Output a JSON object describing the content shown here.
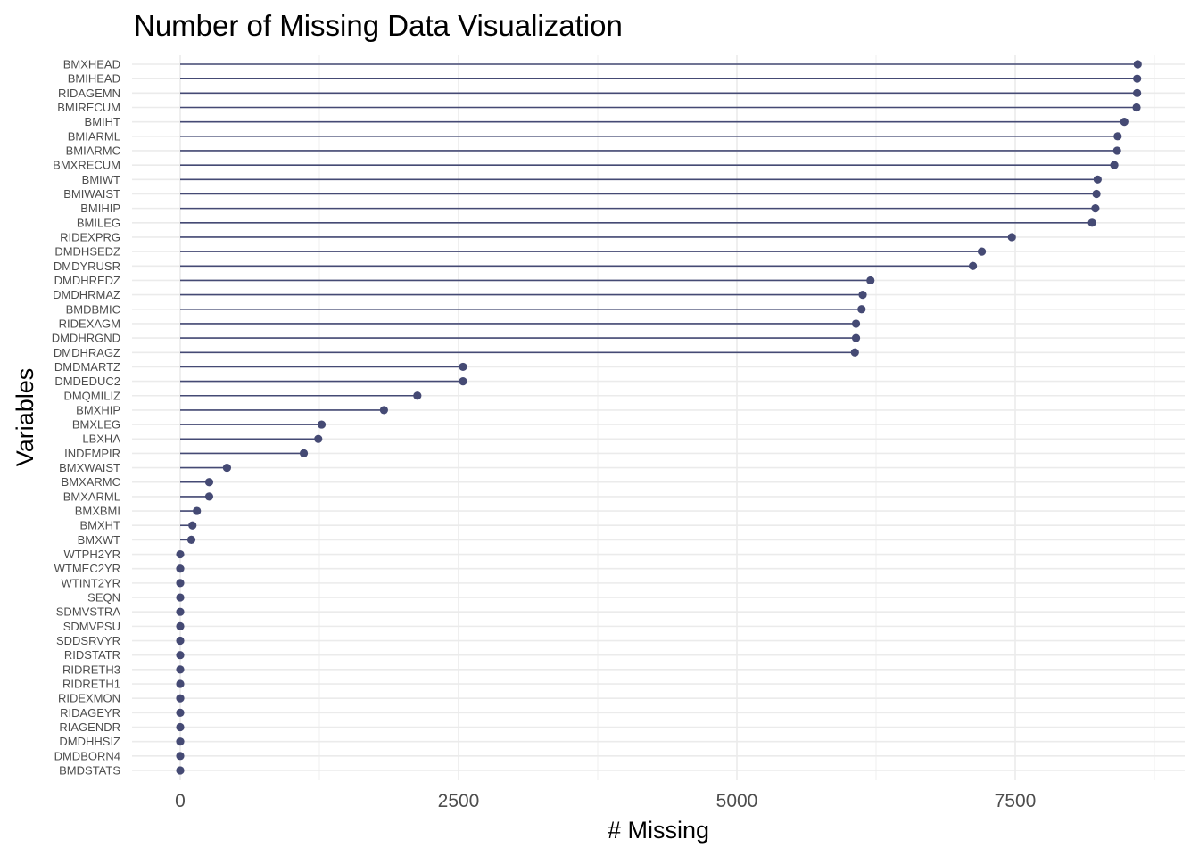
{
  "chart_data": {
    "type": "lollipop",
    "title": "Number of Missing Data Visualization",
    "xlabel": "# Missing",
    "ylabel": "Variables",
    "xlim": [
      -420,
      9130
    ],
    "xticks": [
      0,
      2500,
      5000,
      7500
    ],
    "xtick_labels": [
      "0",
      "2500",
      "5000",
      "7500"
    ],
    "grid": true,
    "color": "#454a74",
    "categories": [
      "BMXHEAD",
      "BMIHEAD",
      "RIDAGEMN",
      "BMIRECUM",
      "BMIHT",
      "BMIARML",
      "BMIARMC",
      "BMXRECUM",
      "BMIWT",
      "BMIWAIST",
      "BMIHIP",
      "BMILEG",
      "RIDEXPRG",
      "DMDHSEDZ",
      "DMDYRUSR",
      "DMDHREDZ",
      "DMDHRMAZ",
      "BMDBMIC",
      "RIDEXAGM",
      "DMDHRGND",
      "DMDHRAGZ",
      "DMDMARTZ",
      "DMDEDUC2",
      "DMQMILIZ",
      "BMXHIP",
      "BMXLEG",
      "LBXHA",
      "INDFMPIR",
      "BMXWAIST",
      "BMXARMC",
      "BMXARML",
      "BMXBMI",
      "BMXHT",
      "BMXWT",
      "WTPH2YR",
      "WTMEC2YR",
      "WTINT2YR",
      "SEQN",
      "SDMVSTRA",
      "SDMVPSU",
      "SDDSRVYR",
      "RIDSTATR",
      "RIDRETH3",
      "RIDRETH1",
      "RIDEXMON",
      "RIDAGEYR",
      "RIAGENDR",
      "DMDHHSIZ",
      "DMDBORN4",
      "BMDSTATS"
    ],
    "values": [
      8600,
      8595,
      8595,
      8590,
      8480,
      8420,
      8415,
      8390,
      8240,
      8230,
      8220,
      8190,
      7470,
      7200,
      7120,
      6200,
      6130,
      6120,
      6070,
      6070,
      6060,
      2540,
      2540,
      2130,
      1830,
      1270,
      1240,
      1110,
      420,
      260,
      260,
      150,
      110,
      100,
      0,
      0,
      0,
      0,
      0,
      0,
      0,
      0,
      0,
      0,
      0,
      0,
      0,
      0,
      0,
      0
    ]
  }
}
